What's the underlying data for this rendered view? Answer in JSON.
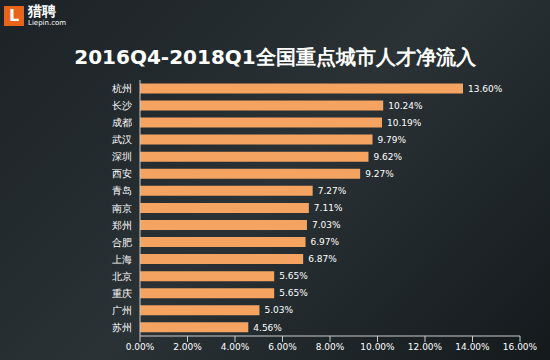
{
  "logo": {
    "text": "猎聘",
    "subtitle": "Liepin.com"
  },
  "chart_data": {
    "type": "bar",
    "orientation": "horizontal",
    "title": "2016Q4-2018Q1全国重点城市人才净流入",
    "categories": [
      "杭州",
      "长沙",
      "成都",
      "武汉",
      "深圳",
      "西安",
      "青岛",
      "南京",
      "郑州",
      "合肥",
      "上海",
      "北京",
      "重庆",
      "广州",
      "苏州"
    ],
    "values": [
      13.6,
      10.24,
      10.19,
      9.79,
      9.62,
      9.27,
      7.27,
      7.11,
      7.03,
      6.97,
      6.87,
      5.65,
      5.65,
      5.03,
      4.56
    ],
    "value_labels": [
      "13.60%",
      "10.24%",
      "10.19%",
      "9.79%",
      "9.62%",
      "9.27%",
      "7.27%",
      "7.11%",
      "7.03%",
      "6.97%",
      "6.87%",
      "5.65%",
      "5.65%",
      "5.03%",
      "4.56%"
    ],
    "color": "#f4a460",
    "data_labels": true,
    "grid": false,
    "xlim": [
      0,
      16
    ],
    "xticks": [
      {
        "value": 0,
        "label": "0.00%"
      },
      {
        "value": 2,
        "label": "2.00%"
      },
      {
        "value": 4,
        "label": "4.00%"
      },
      {
        "value": 6,
        "label": "6.00%"
      },
      {
        "value": 8,
        "label": "8.00%"
      },
      {
        "value": 10,
        "label": "10.00%"
      },
      {
        "value": 12,
        "label": "12.00%"
      },
      {
        "value": 14,
        "label": "14.00%"
      },
      {
        "value": 16,
        "label": "16.00%"
      }
    ]
  }
}
